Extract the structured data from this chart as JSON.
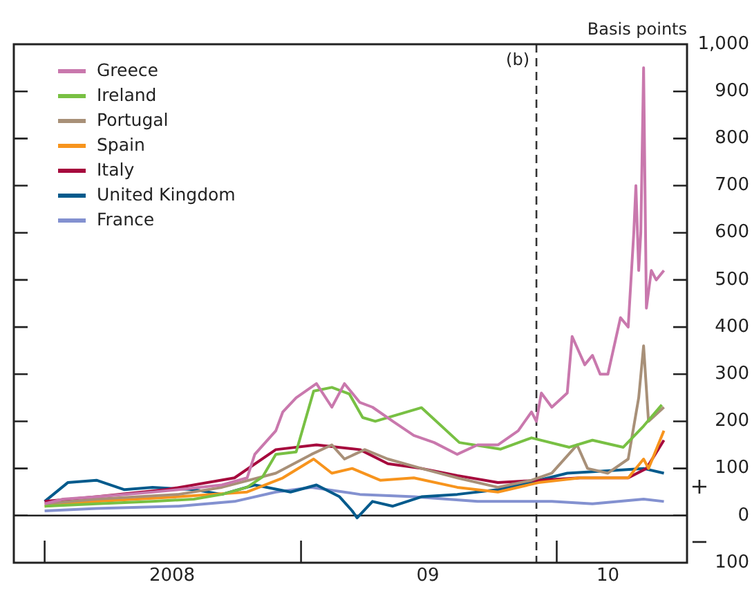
{
  "chart_data": {
    "type": "line",
    "ylabel": "Basis points",
    "xlim": [
      "2007-11-18",
      "2010-07-06"
    ],
    "xticks": [
      {
        "value": "2008-01-01",
        "label": null
      },
      {
        "value": "2008-07-01",
        "label": "2008"
      },
      {
        "value": "2009-01-01",
        "label": null
      },
      {
        "value": "2009-07-01",
        "label": "09"
      },
      {
        "value": "2010-01-01",
        "label": null
      },
      {
        "value": "2010-03-15",
        "label": "10"
      }
    ],
    "ylim": [
      -100,
      1000
    ],
    "yticks": [
      {
        "value": -100,
        "label": "100"
      },
      0,
      100,
      200,
      300,
      400,
      500,
      600,
      700,
      800,
      900,
      {
        "value": 1000,
        "label": "1,000"
      }
    ],
    "legend": "top left",
    "grid": false,
    "ref_lines": [
      {
        "axis": "x",
        "value": "2009-12-03",
        "label": "(b)",
        "line_style": "dashed",
        "color": "#333333"
      },
      {
        "axis": "y",
        "value": 0,
        "color": "#222222"
      }
    ],
    "annotations": [
      "+",
      "−"
    ],
    "series": [
      {
        "name": "Greece",
        "color": "#c978ad",
        "x": [
          "2008-01-01",
          "2008-01-27",
          "2008-03-15",
          "2008-04-24",
          "2008-06-03",
          "2008-07-10",
          "2008-09-10",
          "2008-10-16",
          "2008-10-27",
          "2008-11-26",
          "2008-12-06",
          "2008-12-25",
          "2009-01-23",
          "2009-02-14",
          "2009-03-04",
          "2009-03-26",
          "2009-04-13",
          "2009-05-12",
          "2009-06-11",
          "2009-07-10",
          "2009-08-12",
          "2009-09-10",
          "2009-10-09",
          "2009-11-07",
          "2009-11-26",
          "2009-12-03",
          "2009-12-10",
          "2009-12-25",
          "2010-01-16",
          "2010-01-23",
          "2010-02-10",
          "2010-02-21",
          "2010-03-04",
          "2010-03-15",
          "2010-04-02",
          "2010-04-13",
          "2010-04-21",
          "2010-04-24",
          "2010-04-28",
          "2010-05-01",
          "2010-05-05",
          "2010-05-09",
          "2010-05-16",
          "2010-05-23",
          "2010-06-03"
        ],
        "values": [
          25,
          35,
          40,
          45,
          50,
          55,
          65,
          80,
          130,
          180,
          220,
          250,
          280,
          230,
          280,
          240,
          230,
          200,
          170,
          155,
          130,
          150,
          150,
          180,
          220,
          200,
          260,
          230,
          260,
          380,
          320,
          340,
          300,
          300,
          420,
          400,
          600,
          700,
          520,
          600,
          950,
          440,
          520,
          500,
          520
        ]
      },
      {
        "name": "Ireland",
        "color": "#78c043",
        "x": [
          "2008-01-01",
          "2008-03-15",
          "2008-06-03",
          "2008-08-01",
          "2008-09-10",
          "2008-10-16",
          "2008-11-07",
          "2008-11-26",
          "2008-12-25",
          "2009-01-19",
          "2009-02-14",
          "2009-03-11",
          "2009-03-30",
          "2009-04-17",
          "2009-06-22",
          "2009-08-15",
          "2009-10-13",
          "2009-11-26",
          "2010-01-19",
          "2010-02-21",
          "2010-04-06",
          "2010-05-05",
          "2010-05-31"
        ],
        "values": [
          20,
          25,
          30,
          35,
          45,
          60,
          82,
          130,
          135,
          264,
          272,
          258,
          208,
          200,
          229,
          155,
          141,
          165,
          145,
          160,
          145,
          190,
          235
        ]
      },
      {
        "name": "Portugal",
        "color": "#a89078",
        "x": [
          "2008-01-01",
          "2008-03-15",
          "2008-07-10",
          "2008-09-10",
          "2008-11-26",
          "2009-01-16",
          "2009-02-14",
          "2009-03-04",
          "2009-04-02",
          "2009-05-05",
          "2009-06-22",
          "2009-08-12",
          "2009-10-09",
          "2009-11-26",
          "2009-12-25",
          "2010-01-30",
          "2010-02-14",
          "2010-03-15",
          "2010-04-13",
          "2010-04-28",
          "2010-05-05",
          "2010-05-12",
          "2010-06-03"
        ],
        "values": [
          25,
          35,
          45,
          60,
          90,
          130,
          150,
          120,
          140,
          120,
          100,
          80,
          60,
          75,
          90,
          150,
          100,
          90,
          120,
          250,
          360,
          200,
          230
        ]
      },
      {
        "name": "Spain",
        "color": "#f7941d",
        "x": [
          "2008-01-01",
          "2008-03-15",
          "2008-07-10",
          "2008-10-16",
          "2008-12-06",
          "2009-01-19",
          "2009-02-14",
          "2009-03-15",
          "2009-04-24",
          "2009-06-11",
          "2009-08-12",
          "2009-10-09",
          "2009-12-06",
          "2010-02-03",
          "2010-04-13",
          "2010-05-05",
          "2010-05-12",
          "2010-06-03"
        ],
        "values": [
          20,
          30,
          40,
          50,
          80,
          120,
          90,
          100,
          75,
          80,
          60,
          50,
          70,
          80,
          80,
          120,
          100,
          180
        ]
      },
      {
        "name": "Italy",
        "color": "#a6093d",
        "x": [
          "2008-01-01",
          "2008-03-15",
          "2008-06-22",
          "2008-09-28",
          "2008-11-26",
          "2009-01-23",
          "2009-03-26",
          "2009-05-05",
          "2009-06-22",
          "2009-08-12",
          "2009-10-09",
          "2009-12-06",
          "2010-02-03",
          "2010-04-13",
          "2010-05-09",
          "2010-06-03"
        ],
        "values": [
          30,
          40,
          55,
          80,
          140,
          150,
          140,
          110,
          100,
          85,
          70,
          75,
          80,
          80,
          100,
          160
        ]
      },
      {
        "name": "United Kingdom",
        "color": "#005a8c",
        "x": [
          "2008-01-01",
          "2008-02-03",
          "2008-03-15",
          "2008-04-24",
          "2008-06-03",
          "2008-08-01",
          "2008-09-10",
          "2008-10-27",
          "2008-12-17",
          "2009-01-23",
          "2009-02-25",
          "2009-03-15",
          "2009-03-22",
          "2009-04-13",
          "2009-05-12",
          "2009-06-22",
          "2009-08-12",
          "2009-10-09",
          "2009-12-06",
          "2010-01-16",
          "2010-03-15",
          "2010-05-05",
          "2010-06-03"
        ],
        "values": [
          30,
          70,
          75,
          55,
          60,
          55,
          45,
          65,
          50,
          65,
          40,
          10,
          -5,
          30,
          20,
          40,
          45,
          55,
          75,
          90,
          95,
          100,
          90
        ]
      },
      {
        "name": "France",
        "color": "#8391d0",
        "x": [
          "2008-01-01",
          "2008-03-15",
          "2008-07-10",
          "2008-09-28",
          "2008-11-26",
          "2009-01-16",
          "2009-03-26",
          "2009-06-11",
          "2009-09-10",
          "2009-12-25",
          "2010-02-21",
          "2010-05-05",
          "2010-06-03"
        ],
        "values": [
          10,
          15,
          20,
          30,
          50,
          60,
          45,
          40,
          30,
          30,
          25,
          35,
          30
        ]
      }
    ]
  }
}
